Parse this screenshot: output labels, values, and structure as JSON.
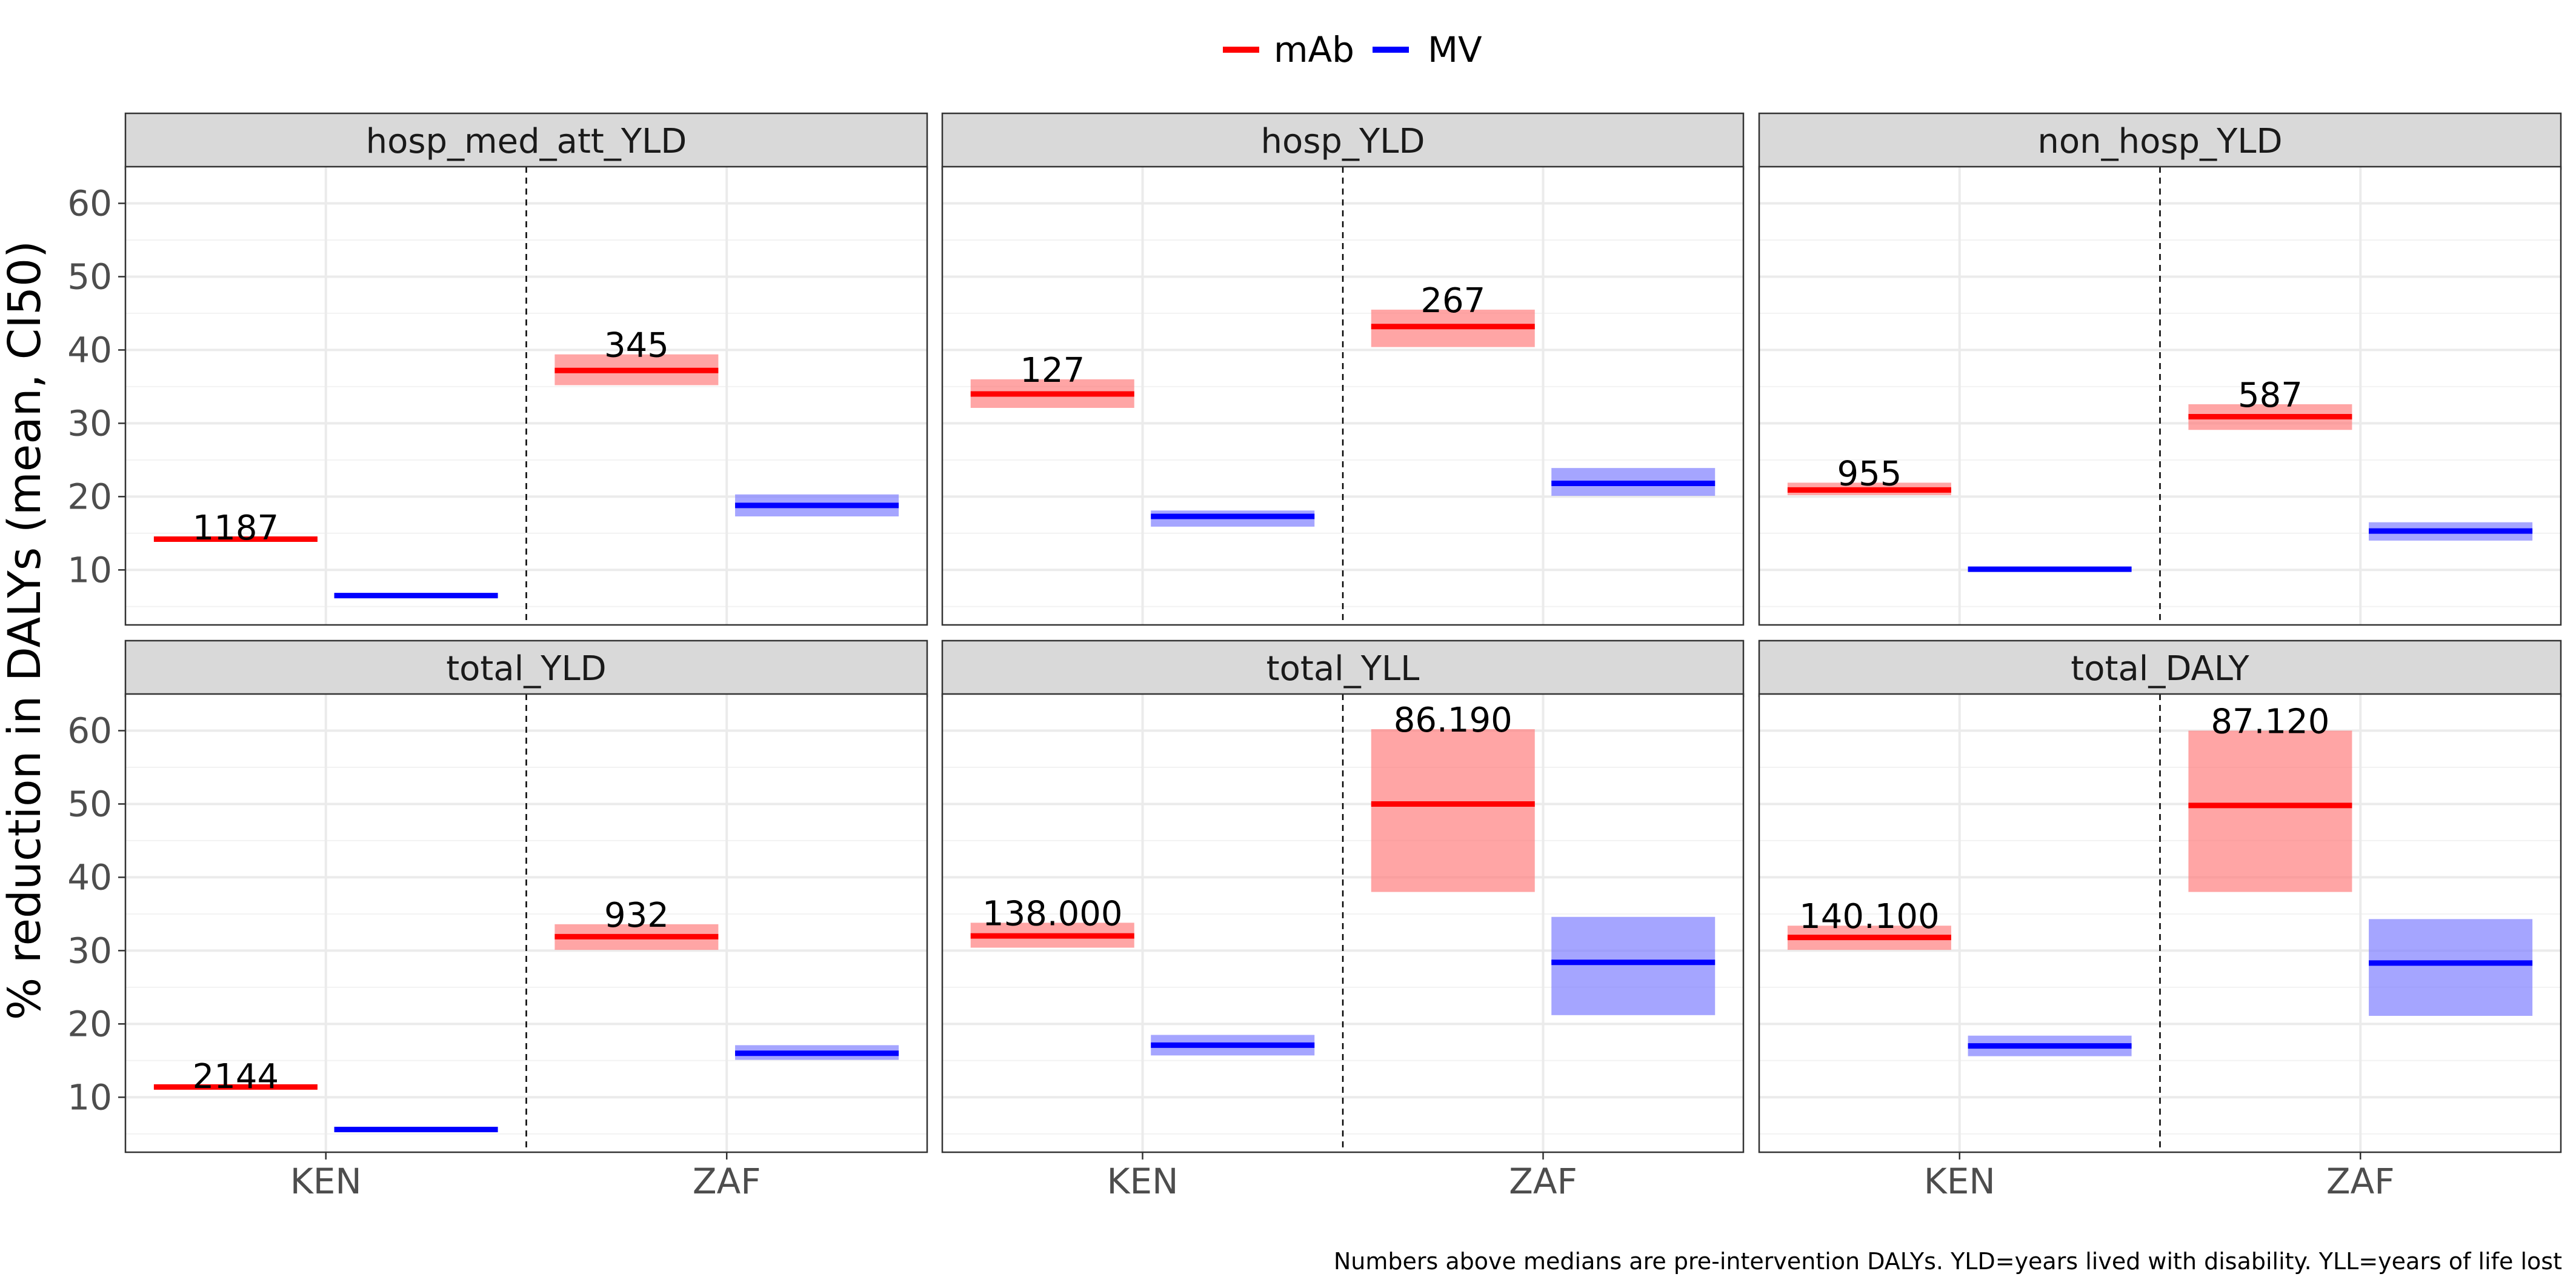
{
  "chart_data": {
    "type": "faceted-crossbar",
    "ylabel": "% reduction in DALYs (mean, CI50)",
    "xlabel": "",
    "categories": [
      "KEN",
      "ZAF"
    ],
    "y_ticks": [
      10,
      20,
      30,
      40,
      50,
      60
    ],
    "ylim": [
      2.5,
      65
    ],
    "grid": true,
    "legend": {
      "placement": "top",
      "entries": [
        {
          "name": "mAb",
          "color": "#ff0000"
        },
        {
          "name": "MV",
          "color": "#0000ff"
        }
      ]
    },
    "band_colors": {
      "mAb": "#ff7f7f",
      "MV": "#7f7fff"
    },
    "caption": "Numbers above medians are pre-intervention DALYs. YLD=years lived with disability. YLL=years of life lost",
    "facets": [
      {
        "title": "hosp_med_att_YLD",
        "series": [
          {
            "name": "mAb",
            "points": [
              {
                "x": "KEN",
                "y": 14.2,
                "lo": 13.9,
                "hi": 14.5,
                "label": "1187"
              },
              {
                "x": "ZAF",
                "y": 37.2,
                "lo": 35.2,
                "hi": 39.4,
                "label": "345"
              }
            ]
          },
          {
            "name": "MV",
            "points": [
              {
                "x": "KEN",
                "y": 6.5,
                "lo": 6.3,
                "hi": 6.7
              },
              {
                "x": "ZAF",
                "y": 18.8,
                "lo": 17.3,
                "hi": 20.3
              }
            ]
          }
        ]
      },
      {
        "title": "hosp_YLD",
        "series": [
          {
            "name": "mAb",
            "points": [
              {
                "x": "KEN",
                "y": 34.0,
                "lo": 32.1,
                "hi": 36.0,
                "label": "127"
              },
              {
                "x": "ZAF",
                "y": 43.2,
                "lo": 40.4,
                "hi": 45.5,
                "label": "267"
              }
            ]
          },
          {
            "name": "MV",
            "points": [
              {
                "x": "KEN",
                "y": 17.3,
                "lo": 15.9,
                "hi": 18.1
              },
              {
                "x": "ZAF",
                "y": 21.8,
                "lo": 20.1,
                "hi": 23.9
              }
            ]
          }
        ]
      },
      {
        "title": "non_hosp_YLD",
        "series": [
          {
            "name": "mAb",
            "points": [
              {
                "x": "KEN",
                "y": 20.9,
                "lo": 20.2,
                "hi": 21.9,
                "label": "955"
              },
              {
                "x": "ZAF",
                "y": 30.9,
                "lo": 29.1,
                "hi": 32.6,
                "label": "587"
              }
            ]
          },
          {
            "name": "MV",
            "points": [
              {
                "x": "KEN",
                "y": 10.1,
                "lo": 9.9,
                "hi": 10.4
              },
              {
                "x": "ZAF",
                "y": 15.3,
                "lo": 14.0,
                "hi": 16.5
              }
            ]
          }
        ]
      },
      {
        "title": "total_YLD",
        "series": [
          {
            "name": "mAb",
            "points": [
              {
                "x": "KEN",
                "y": 11.4,
                "lo": 11.2,
                "hi": 11.6,
                "label": "2144"
              },
              {
                "x": "ZAF",
                "y": 31.9,
                "lo": 30.1,
                "hi": 33.6,
                "label": "932"
              }
            ]
          },
          {
            "name": "MV",
            "points": [
              {
                "x": "KEN",
                "y": 5.6,
                "lo": 5.4,
                "hi": 5.8
              },
              {
                "x": "ZAF",
                "y": 16.0,
                "lo": 15.1,
                "hi": 17.1
              }
            ]
          }
        ]
      },
      {
        "title": "total_YLL",
        "series": [
          {
            "name": "mAb",
            "points": [
              {
                "x": "KEN",
                "y": 32.0,
                "lo": 30.4,
                "hi": 33.8,
                "label": "138.000"
              },
              {
                "x": "ZAF",
                "y": 50.0,
                "lo": 38.0,
                "hi": 60.2,
                "label": "86.190"
              }
            ]
          },
          {
            "name": "MV",
            "points": [
              {
                "x": "KEN",
                "y": 17.1,
                "lo": 15.7,
                "hi": 18.5
              },
              {
                "x": "ZAF",
                "y": 28.4,
                "lo": 21.2,
                "hi": 34.6
              }
            ]
          }
        ]
      },
      {
        "title": "total_DALY",
        "series": [
          {
            "name": "mAb",
            "points": [
              {
                "x": "KEN",
                "y": 31.8,
                "lo": 30.1,
                "hi": 33.4,
                "label": "140.100"
              },
              {
                "x": "ZAF",
                "y": 49.8,
                "lo": 38.0,
                "hi": 60.0,
                "label": "87.120"
              }
            ]
          },
          {
            "name": "MV",
            "points": [
              {
                "x": "KEN",
                "y": 17.0,
                "lo": 15.6,
                "hi": 18.4
              },
              {
                "x": "ZAF",
                "y": 28.3,
                "lo": 21.1,
                "hi": 34.3
              }
            ]
          }
        ]
      }
    ]
  }
}
